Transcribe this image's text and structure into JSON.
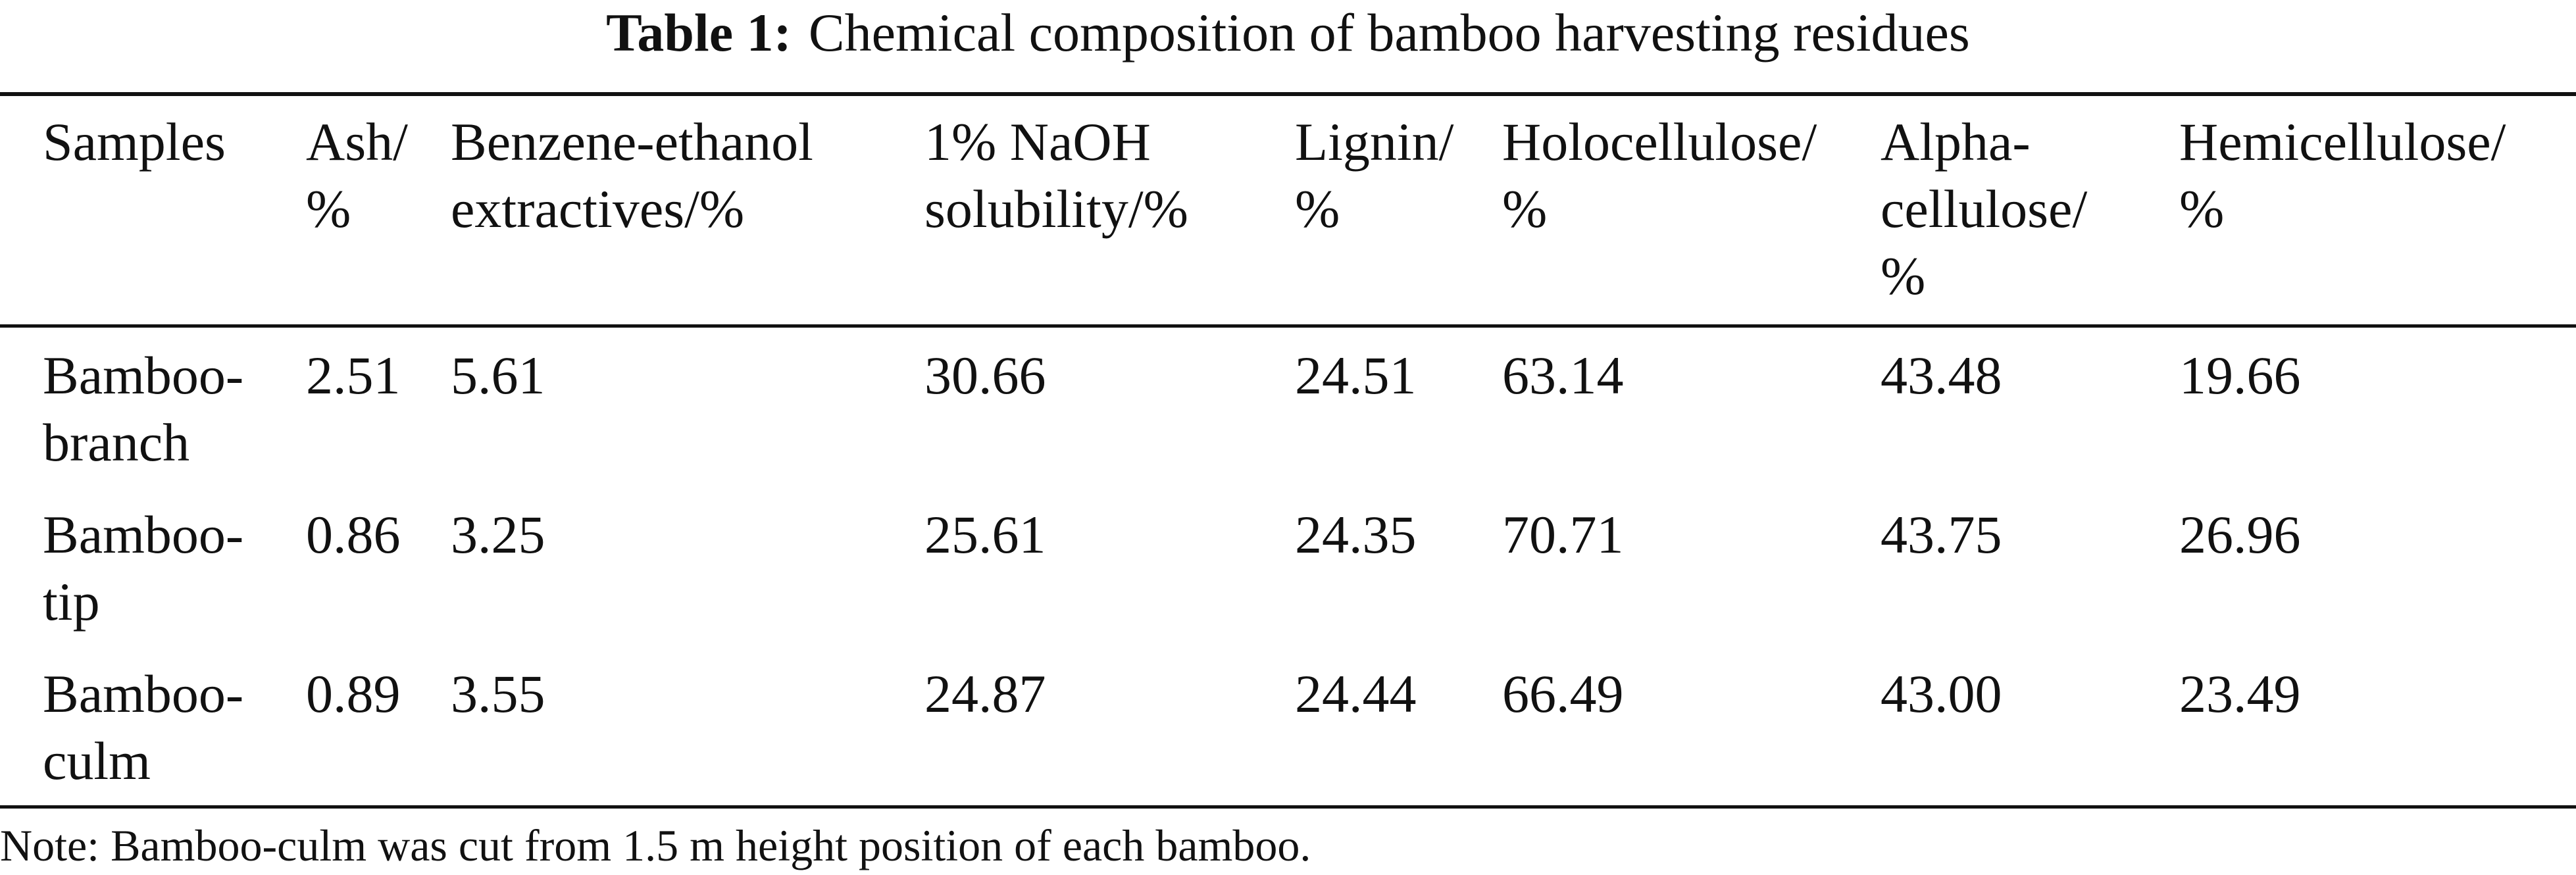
{
  "caption": {
    "label": "Table 1:",
    "text": "Chemical composition of bamboo harvesting residues"
  },
  "table": {
    "headers": [
      [
        "Samples"
      ],
      [
        "Ash/",
        "%"
      ],
      [
        "Benzene-ethanol",
        "extractives/%"
      ],
      [
        "1% NaOH",
        "solubility/%"
      ],
      [
        "Lignin/",
        "%"
      ],
      [
        "Holocellulose/",
        "%"
      ],
      [
        "Alpha-",
        "cellulose/",
        "%"
      ],
      [
        "Hemicellulose/",
        "%"
      ]
    ],
    "rows": [
      {
        "sample": [
          "Bamboo-",
          "branch"
        ],
        "values": [
          "2.51",
          "5.61",
          "30.66",
          "24.51",
          "63.14",
          "43.48",
          "19.66"
        ]
      },
      {
        "sample": [
          "Bamboo-",
          "tip"
        ],
        "values": [
          "0.86",
          "3.25",
          "25.61",
          "24.35",
          "70.71",
          "43.75",
          "26.96"
        ]
      },
      {
        "sample": [
          "Bamboo-",
          "culm"
        ],
        "values": [
          "0.89",
          "3.55",
          "24.87",
          "24.44",
          "66.49",
          "43.00",
          "23.49"
        ]
      }
    ]
  },
  "note": "Note: Bamboo-culm was cut from 1.5 m height position of each bamboo."
}
